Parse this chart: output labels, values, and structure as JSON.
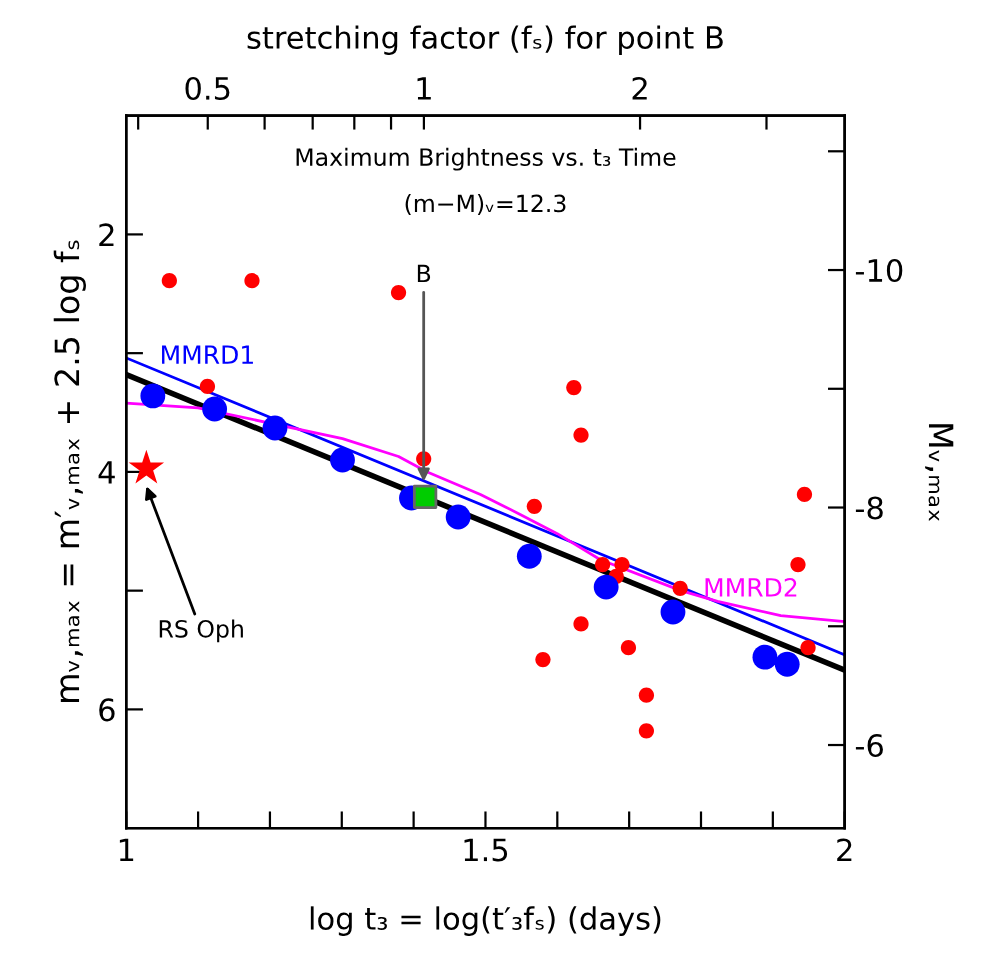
{
  "chart_data": {
    "type": "scatter",
    "title": "Maximum Brightness vs. t₃ Time",
    "subtitle": "(m−M)ᵥ=12.3",
    "xlabel": "log t₃ = log(t′₃fₛ) (days)",
    "ylabel": "mᵥ,ₘₐₓ = m′ᵥ,ₘₐₓ + 2.5 log fₛ",
    "y2label": "Mᵥ,ₘₐₓ",
    "x2label": "stretching factor (fₛ) for point B",
    "xlim": [
      1,
      2
    ],
    "xticks": [
      1,
      {
        "value": 1.1,
        "label": null
      },
      {
        "value": 1.2,
        "label": null
      },
      {
        "value": 1.3,
        "label": null
      },
      {
        "value": 1.4,
        "label": null
      },
      1.5,
      {
        "value": 1.6,
        "label": null
      },
      {
        "value": 1.7,
        "label": null
      },
      {
        "value": 1.8,
        "label": null
      },
      {
        "value": 1.9,
        "label": null
      },
      2
    ],
    "ylim": [
      7,
      1
    ],
    "yticks": [
      2,
      {
        "value": 3,
        "label": null
      },
      4,
      {
        "value": 5,
        "label": null
      },
      6
    ],
    "y2lim": [
      -5.3,
      -11.3
    ],
    "y2ticks": [
      {
        "value": -11,
        "label": null
      },
      -10,
      {
        "value": -9,
        "label": null
      },
      -8,
      {
        "value": -7,
        "label": null
      },
      -6
    ],
    "x2lim": [
      0.385,
      3.855
    ],
    "x2ticks": [
      {
        "value": 0.4,
        "label": null
      },
      0.5,
      {
        "value": 0.6,
        "label": null
      },
      {
        "value": 0.7,
        "label": null
      },
      {
        "value": 0.8,
        "label": null
      },
      {
        "value": 0.9,
        "label": null
      },
      1,
      2,
      {
        "value": 3,
        "label": null
      }
    ],
    "log": "x2",
    "grid": false,
    "series": [
      {
        "type": "line",
        "color": "#000000",
        "x": [
          1,
          2
        ],
        "values": [
          3.18,
          5.67
        ]
      },
      {
        "type": "line",
        "name": "MMRD1",
        "color": "#0000ff",
        "x": [
          1,
          2
        ],
        "values": [
          3.04,
          5.54
        ]
      },
      {
        "type": "line",
        "name": "MMRD2",
        "color": "#ff00ff",
        "x": [
          1.0,
          1.1,
          1.301,
          1.379,
          1.419,
          1.493,
          1.549,
          1.6,
          1.66,
          1.772,
          1.823,
          1.911,
          2.0
        ],
        "values": [
          3.42,
          3.46,
          3.72,
          3.87,
          4.0,
          4.19,
          4.36,
          4.52,
          4.74,
          5.0,
          5.09,
          5.21,
          5.26
        ]
      },
      {
        "marker": "circle",
        "color": "#ff0000",
        "x": [
          1.06,
          1.175,
          1.379,
          1.113,
          1.414,
          1.623,
          1.633,
          1.568,
          1.944,
          1.663,
          1.69,
          1.682,
          1.935,
          1.771,
          1.633,
          1.58,
          1.699,
          1.949,
          1.724,
          1.724
        ],
        "values": [
          2.39,
          2.39,
          2.49,
          3.28,
          3.89,
          3.29,
          3.69,
          4.29,
          4.19,
          4.78,
          4.78,
          4.88,
          4.78,
          4.98,
          5.28,
          5.58,
          5.48,
          5.48,
          5.88,
          6.18
        ]
      },
      {
        "marker": "circle",
        "color": "#0000ff",
        "x": [
          1.037,
          1.123,
          1.207,
          1.301,
          1.397,
          1.462,
          1.561,
          1.668,
          1.761,
          1.889,
          1.92
        ],
        "values": [
          3.36,
          3.47,
          3.63,
          3.9,
          4.22,
          4.38,
          4.71,
          4.97,
          5.18,
          5.56,
          5.62
        ]
      },
      {
        "marker": "square",
        "color": "#00cc00",
        "x": [
          1.416
        ],
        "values": [
          4.21
        ]
      },
      {
        "marker": "star",
        "color": "#ff0000",
        "x": [
          1.028
        ],
        "values": [
          3.97
        ]
      }
    ],
    "annotations": [
      {
        "text": "B",
        "x": 1.414,
        "y": 4.08
      },
      {
        "text": "RS Oph",
        "x": 1.028,
        "y": 4.12
      }
    ]
  }
}
